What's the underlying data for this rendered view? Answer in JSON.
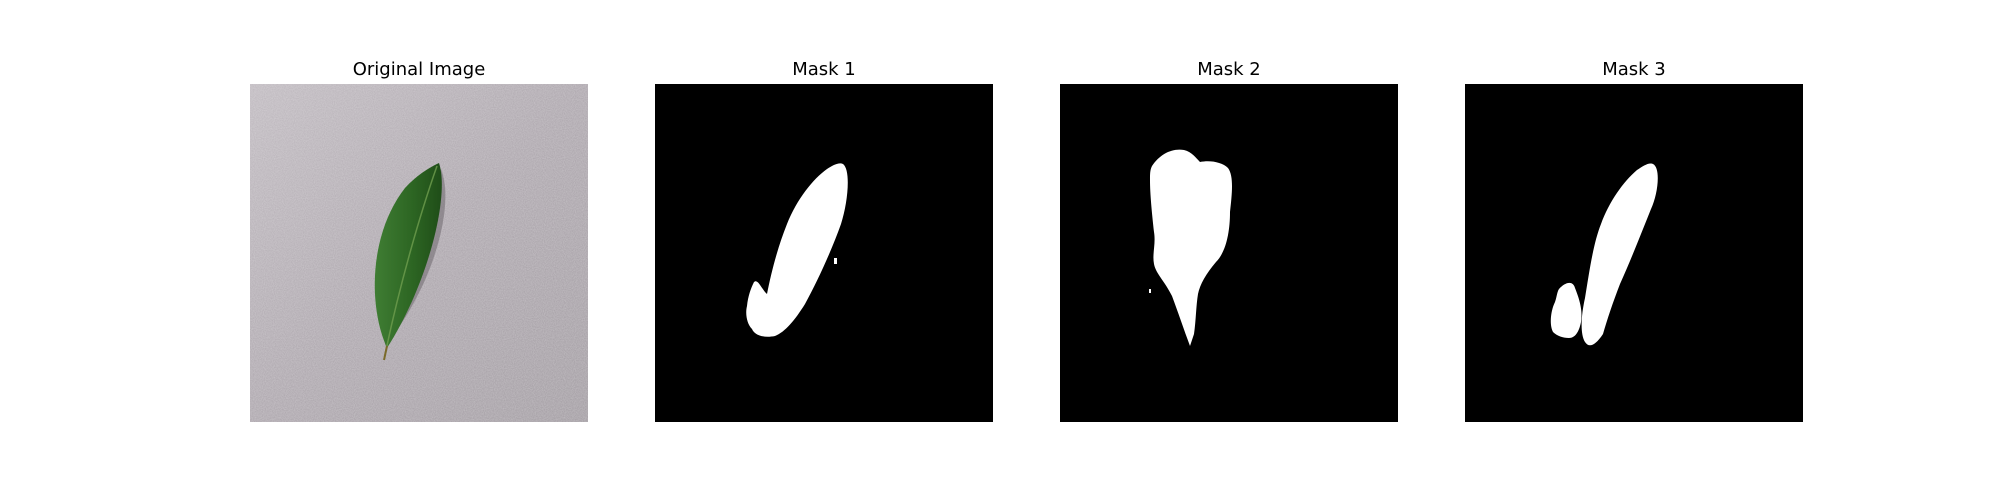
{
  "figure": {
    "panels": [
      {
        "title": "Original Image"
      },
      {
        "title": "Mask 1"
      },
      {
        "title": "Mask 2"
      },
      {
        "title": "Mask 3"
      }
    ]
  },
  "colors": {
    "background": "#ffffff",
    "mask_background": "#000000",
    "mask_foreground": "#ffffff",
    "surface_gray": "#b1aab1",
    "leaf_green": "#2f6a24"
  }
}
